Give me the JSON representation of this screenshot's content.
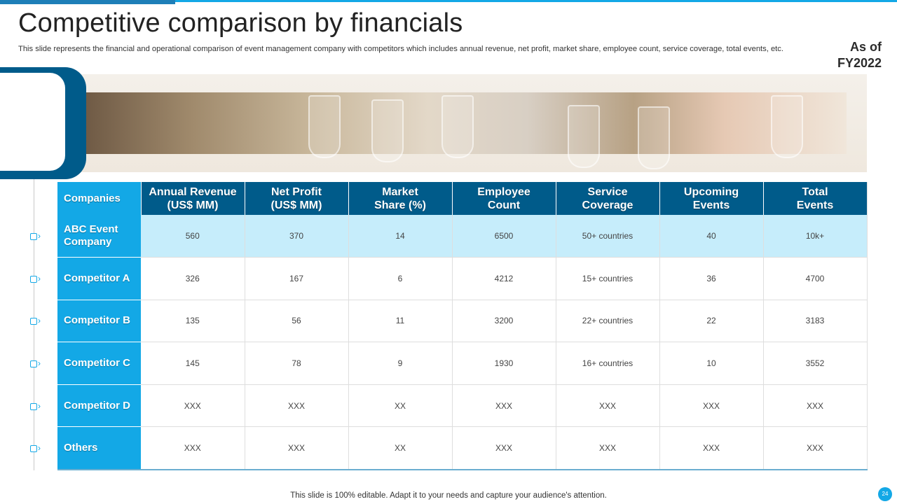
{
  "header": {
    "title": "Competitive comparison by financials",
    "subtitle": "This slide represents the financial and operational comparison of event management company with competitors which includes annual revenue, net profit, market share, employee count, service coverage, total events, etc."
  },
  "asof": {
    "line1": "As of",
    "line2": "FY2022"
  },
  "table": {
    "headers": [
      [
        "Companies"
      ],
      [
        "Annual Revenue",
        "(US$ MM)"
      ],
      [
        "Net Profit",
        "(US$ MM)"
      ],
      [
        "Market",
        "Share (%)"
      ],
      [
        "Employee",
        "Count"
      ],
      [
        "Service",
        "Coverage"
      ],
      [
        "Upcoming",
        "Events"
      ],
      [
        "Total",
        "Events"
      ]
    ],
    "rows": [
      {
        "company": [
          "ABC Event",
          "Company"
        ],
        "values": [
          "560",
          "370",
          "14",
          "6500",
          "50+ countries",
          "40",
          "10k+"
        ]
      },
      {
        "company": [
          "Competitor A"
        ],
        "values": [
          "326",
          "167",
          "6",
          "4212",
          "15+ countries",
          "36",
          "4700"
        ]
      },
      {
        "company": [
          "Competitor B"
        ],
        "values": [
          "135",
          "56",
          "11",
          "3200",
          "22+ countries",
          "22",
          "3183"
        ]
      },
      {
        "company": [
          "Competitor C"
        ],
        "values": [
          "145",
          "78",
          "9",
          "1930",
          "16+ countries",
          "10",
          "3552"
        ]
      },
      {
        "company": [
          "Competitor D"
        ],
        "values": [
          "XXX",
          "XXX",
          "XX",
          "XXX",
          "XXX",
          "XXX",
          "XXX"
        ]
      },
      {
        "company": [
          "Others"
        ],
        "values": [
          "XXX",
          "XXX",
          "XX",
          "XXX",
          "XXX",
          "XXX",
          "XXX"
        ]
      }
    ]
  },
  "footer": {
    "note": "This slide is 100% editable. Adapt it to your needs and capture your audience's attention.",
    "page_number": "24"
  },
  "colors": {
    "accent": "#13a8e6",
    "header_dark": "#005b8a",
    "highlight_row": "#c6edfb"
  }
}
